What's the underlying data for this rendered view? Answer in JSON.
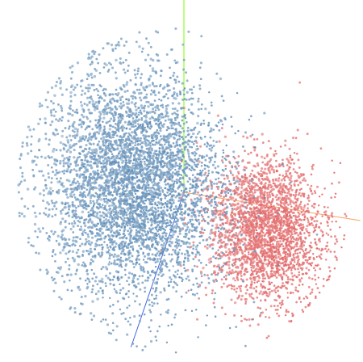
{
  "chart_data": {
    "type": "scatter",
    "title": "",
    "xlabel": "",
    "ylabel": "",
    "projection": "3d-embedding",
    "grid": false,
    "legend": "none",
    "axes_colors": {
      "x": "#f4a460",
      "y": "#7cfc00",
      "z": "#4169e1"
    },
    "series": [
      {
        "name": "",
        "color": "#1f5f99",
        "point_count": 4800,
        "center": [
          -0.35,
          0.05,
          0.0
        ],
        "spread": [
          0.55,
          0.7,
          0.6
        ]
      },
      {
        "name": "",
        "color": "#d62728",
        "point_count": 2600,
        "center": [
          0.55,
          -0.25,
          0.1
        ],
        "spread": [
          0.35,
          0.45,
          0.5
        ]
      }
    ]
  }
}
